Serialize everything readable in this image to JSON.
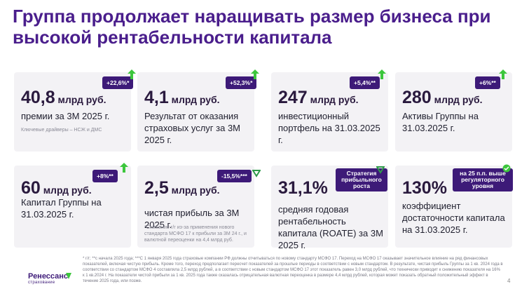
{
  "title": "Группа продолжает наращивать размер бизнеса при высокой рентабельности капитала",
  "colors": {
    "accent": "#3d1a78",
    "up": "#3cc63c",
    "down": "#2e9a4a"
  },
  "cards": [
    {
      "num": "40,8",
      "unit": " млрд руб.",
      "badge": "+22,6%*",
      "direction": "up",
      "desc": "премии за 3М 2025 г.",
      "note": "Ключевые драйверы – НСЖ и ДМС"
    },
    {
      "num": "4,1",
      "unit": " млрд руб.",
      "badge": "+52,3%*",
      "direction": "up",
      "desc": "Результат от оказания страховых услуг за 3М 2025 г.",
      "note": ""
    },
    {
      "num": "247",
      "unit": " млрд руб.",
      "badge": "+5,4%**",
      "direction": "up",
      "desc": "инвестиционный портфель на 31.03.2025 г.",
      "note": ""
    },
    {
      "num": "280",
      "unit": " млрд руб.",
      "badge": "+6%**",
      "direction": "up",
      "desc": "Активы Группы на 31.03.2025 г.",
      "note": ""
    },
    {
      "num": "60",
      "unit": " млрд руб.",
      "badge": "+8%**",
      "direction": "up",
      "desc": "Капитал Группы на 31.03.2025 г.",
      "note": ""
    },
    {
      "num": "2,5",
      "unit": " млрд руб.",
      "badge": "-15,5%***",
      "direction": "down",
      "desc": "чистая прибыль за 3М 2025 г.",
      "note": "*Снижение г/г из-за применения нового стандарта МСФО 17 к прибыли за 3М 24 г., и валютной переоценки на 4,4 млрд руб."
    },
    {
      "num": "31,1%",
      "unit": "",
      "badge": "Стратегия прибыльного роста",
      "direction": "check",
      "desc": "средняя годовая рентабельность капитала (ROATE) за 3М 2025 г.",
      "note": ""
    },
    {
      "num": "130%",
      "unit": "",
      "badge": "на 25 п.п. выше регуляторного уровня",
      "direction": "check",
      "desc": "коэффициент достаточности капитала на 31.03.2025 г.",
      "note": ""
    }
  ],
  "footnote": "* г/г; **с начала 2025 года; ***С 1 января 2025 года страховые компании РФ должны отчитываться по новому стандарту МСФО 17. Переход на МСФО 17 оказывает значительное влияние на ряд финансовых показателей, включая чистую прибыль. Кроме того, переход предполагает пересчет показателей за прошлые периоды в соответствии с новым стандартом. В результате, чистая прибыль Группы за 1 кв. 2024 года в соответствии со стандартом МСФО 4 составляла 2,5 млрд рублей, а в соответствии с новым стандартом МСФО 17 этот показатель равен 3,0 млрд рублей, что технически приводит к снижению показателя на 16% к 1 кв.2024 г. На показатели чистой прибыли за 1 кв. 2025 года также сказалась отрицательная валютная переоценка в размере 4,4 млрд рублей, которая может показать обратный положительный эффект в течение 2025 года, или позже.",
  "logo": {
    "name": "Ренессанс",
    "sub": "страхование"
  },
  "page_number": "4"
}
